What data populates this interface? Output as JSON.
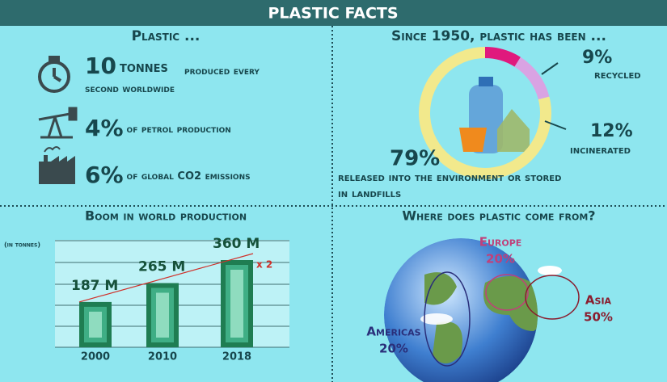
{
  "title": "PLASTIC FACTS",
  "facts": {
    "title": "Plastic ...",
    "items": [
      {
        "value": "10",
        "unit": "tonnes",
        "text": "produced every second worldwide"
      },
      {
        "value": "4%",
        "text": "of petrol production"
      },
      {
        "value": "6%",
        "text": "of global CO2 emissions"
      }
    ]
  },
  "chart_data": [
    {
      "type": "donut",
      "title": "Since 1950, plastic has been ...",
      "categories": [
        "recycled",
        "incinerated",
        "released into the environment or stored in landfills"
      ],
      "values": [
        9,
        12,
        79
      ],
      "value_labels": [
        "9%",
        "12%",
        "79%"
      ],
      "colors": [
        "#e0197d",
        "#d9a3e3",
        "#f2e98c"
      ]
    },
    {
      "type": "bar",
      "title": "Boom in world production",
      "y_label": "(in tonnes)",
      "categories": [
        "2000",
        "2010",
        "2018"
      ],
      "values": [
        187000000,
        265000000,
        360000000
      ],
      "value_labels": [
        "187 M",
        "265 M",
        "360 M"
      ],
      "annotation": "x 2",
      "color": "#1f7d52",
      "ylim": [
        0,
        400000000
      ]
    },
    {
      "type": "regions",
      "title": "Where does plastic come from?",
      "categories": [
        "Europe",
        "Asia",
        "Americas"
      ],
      "values": [
        20,
        50,
        20
      ],
      "value_labels": [
        "20%",
        "50%",
        "20%"
      ],
      "colors": [
        "#c0407a",
        "#8a1d2e",
        "#2a2f7a"
      ]
    }
  ]
}
